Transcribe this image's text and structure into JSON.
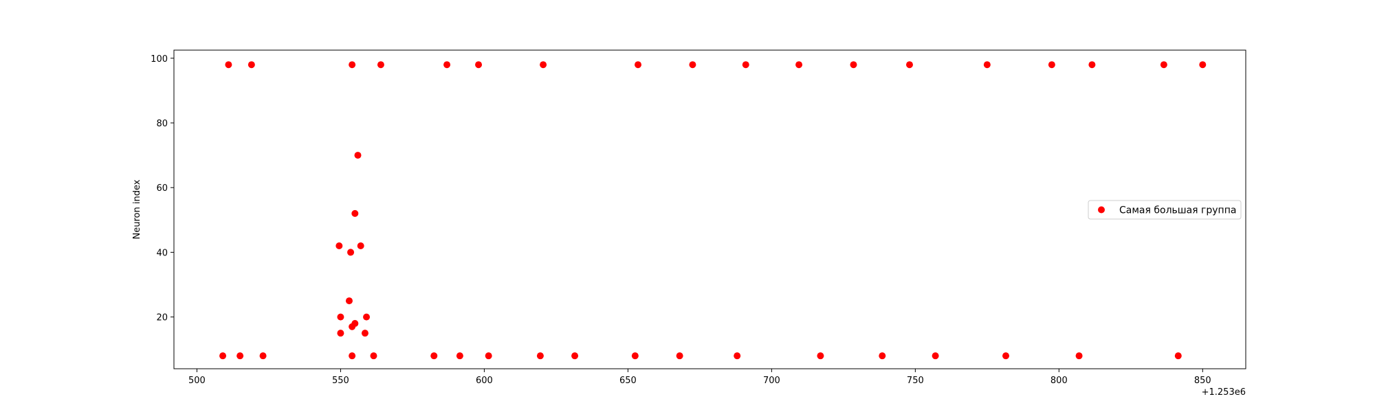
{
  "chart_data": {
    "type": "scatter",
    "title": "",
    "xlabel": "",
    "ylabel": "Neuron index",
    "x_offset_label": "+1.253e6",
    "xlim": [
      492,
      865
    ],
    "ylim": [
      4,
      102.5
    ],
    "xticks": [
      500,
      550,
      600,
      650,
      700,
      750,
      800,
      850
    ],
    "yticks": [
      20,
      40,
      60,
      80,
      100
    ],
    "grid": false,
    "legend_position": "center-right",
    "series": [
      {
        "name": "Самая большая группа",
        "color": "#ff0000",
        "points": [
          {
            "x": 511,
            "y": 98
          },
          {
            "x": 519,
            "y": 98
          },
          {
            "x": 554,
            "y": 98
          },
          {
            "x": 564,
            "y": 98
          },
          {
            "x": 587,
            "y": 98
          },
          {
            "x": 598,
            "y": 98
          },
          {
            "x": 620.5,
            "y": 98
          },
          {
            "x": 653.5,
            "y": 98
          },
          {
            "x": 672.5,
            "y": 98
          },
          {
            "x": 691,
            "y": 98
          },
          {
            "x": 709.5,
            "y": 98
          },
          {
            "x": 728.5,
            "y": 98
          },
          {
            "x": 748,
            "y": 98
          },
          {
            "x": 775,
            "y": 98
          },
          {
            "x": 797.5,
            "y": 98
          },
          {
            "x": 811.5,
            "y": 98
          },
          {
            "x": 836.5,
            "y": 98
          },
          {
            "x": 850,
            "y": 98
          },
          {
            "x": 556,
            "y": 70
          },
          {
            "x": 555,
            "y": 52
          },
          {
            "x": 549.5,
            "y": 42
          },
          {
            "x": 557,
            "y": 42
          },
          {
            "x": 553.5,
            "y": 40
          },
          {
            "x": 553,
            "y": 25
          },
          {
            "x": 550,
            "y": 20
          },
          {
            "x": 559,
            "y": 20
          },
          {
            "x": 555,
            "y": 18
          },
          {
            "x": 554,
            "y": 17
          },
          {
            "x": 550,
            "y": 15
          },
          {
            "x": 558.5,
            "y": 15
          },
          {
            "x": 509,
            "y": 8
          },
          {
            "x": 515,
            "y": 8
          },
          {
            "x": 523,
            "y": 8
          },
          {
            "x": 554,
            "y": 8
          },
          {
            "x": 561.5,
            "y": 8
          },
          {
            "x": 582.5,
            "y": 8
          },
          {
            "x": 591.5,
            "y": 8
          },
          {
            "x": 601.5,
            "y": 8
          },
          {
            "x": 619.5,
            "y": 8
          },
          {
            "x": 631.5,
            "y": 8
          },
          {
            "x": 652.5,
            "y": 8
          },
          {
            "x": 668,
            "y": 8
          },
          {
            "x": 688,
            "y": 8
          },
          {
            "x": 717,
            "y": 8
          },
          {
            "x": 738.5,
            "y": 8
          },
          {
            "x": 757,
            "y": 8
          },
          {
            "x": 781.5,
            "y": 8
          },
          {
            "x": 807,
            "y": 8
          },
          {
            "x": 841.5,
            "y": 8
          }
        ]
      }
    ]
  }
}
